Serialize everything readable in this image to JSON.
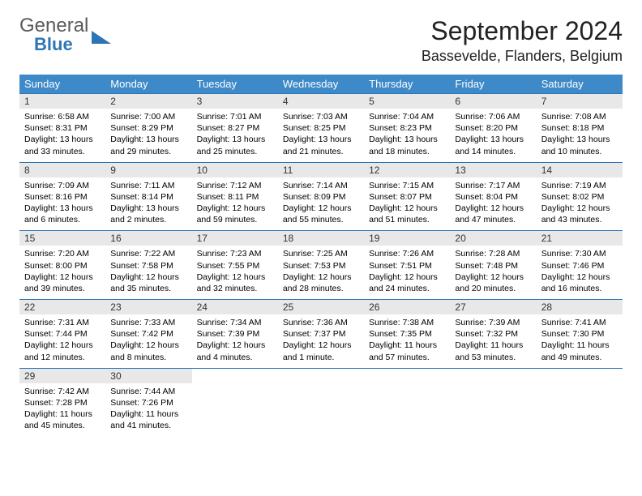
{
  "brand": {
    "word1": "General",
    "word2": "Blue"
  },
  "header": {
    "month_title": "September 2024",
    "location": "Bassevelde, Flanders, Belgium"
  },
  "style": {
    "header_bg": "#3e8ac8",
    "header_fg": "#ffffff",
    "row_divider": "#2e75b6",
    "daynum_bg": "#e8e8e8",
    "body_font_size": 10.5,
    "head_font_size": 13,
    "title_font_size": 32,
    "location_font_size": 18
  },
  "weekdays": [
    "Sunday",
    "Monday",
    "Tuesday",
    "Wednesday",
    "Thursday",
    "Friday",
    "Saturday"
  ],
  "days": [
    {
      "n": "1",
      "sunrise": "Sunrise: 6:58 AM",
      "sunset": "Sunset: 8:31 PM",
      "day1": "Daylight: 13 hours",
      "day2": "and 33 minutes."
    },
    {
      "n": "2",
      "sunrise": "Sunrise: 7:00 AM",
      "sunset": "Sunset: 8:29 PM",
      "day1": "Daylight: 13 hours",
      "day2": "and 29 minutes."
    },
    {
      "n": "3",
      "sunrise": "Sunrise: 7:01 AM",
      "sunset": "Sunset: 8:27 PM",
      "day1": "Daylight: 13 hours",
      "day2": "and 25 minutes."
    },
    {
      "n": "4",
      "sunrise": "Sunrise: 7:03 AM",
      "sunset": "Sunset: 8:25 PM",
      "day1": "Daylight: 13 hours",
      "day2": "and 21 minutes."
    },
    {
      "n": "5",
      "sunrise": "Sunrise: 7:04 AM",
      "sunset": "Sunset: 8:23 PM",
      "day1": "Daylight: 13 hours",
      "day2": "and 18 minutes."
    },
    {
      "n": "6",
      "sunrise": "Sunrise: 7:06 AM",
      "sunset": "Sunset: 8:20 PM",
      "day1": "Daylight: 13 hours",
      "day2": "and 14 minutes."
    },
    {
      "n": "7",
      "sunrise": "Sunrise: 7:08 AM",
      "sunset": "Sunset: 8:18 PM",
      "day1": "Daylight: 13 hours",
      "day2": "and 10 minutes."
    },
    {
      "n": "8",
      "sunrise": "Sunrise: 7:09 AM",
      "sunset": "Sunset: 8:16 PM",
      "day1": "Daylight: 13 hours",
      "day2": "and 6 minutes."
    },
    {
      "n": "9",
      "sunrise": "Sunrise: 7:11 AM",
      "sunset": "Sunset: 8:14 PM",
      "day1": "Daylight: 13 hours",
      "day2": "and 2 minutes."
    },
    {
      "n": "10",
      "sunrise": "Sunrise: 7:12 AM",
      "sunset": "Sunset: 8:11 PM",
      "day1": "Daylight: 12 hours",
      "day2": "and 59 minutes."
    },
    {
      "n": "11",
      "sunrise": "Sunrise: 7:14 AM",
      "sunset": "Sunset: 8:09 PM",
      "day1": "Daylight: 12 hours",
      "day2": "and 55 minutes."
    },
    {
      "n": "12",
      "sunrise": "Sunrise: 7:15 AM",
      "sunset": "Sunset: 8:07 PM",
      "day1": "Daylight: 12 hours",
      "day2": "and 51 minutes."
    },
    {
      "n": "13",
      "sunrise": "Sunrise: 7:17 AM",
      "sunset": "Sunset: 8:04 PM",
      "day1": "Daylight: 12 hours",
      "day2": "and 47 minutes."
    },
    {
      "n": "14",
      "sunrise": "Sunrise: 7:19 AM",
      "sunset": "Sunset: 8:02 PM",
      "day1": "Daylight: 12 hours",
      "day2": "and 43 minutes."
    },
    {
      "n": "15",
      "sunrise": "Sunrise: 7:20 AM",
      "sunset": "Sunset: 8:00 PM",
      "day1": "Daylight: 12 hours",
      "day2": "and 39 minutes."
    },
    {
      "n": "16",
      "sunrise": "Sunrise: 7:22 AM",
      "sunset": "Sunset: 7:58 PM",
      "day1": "Daylight: 12 hours",
      "day2": "and 35 minutes."
    },
    {
      "n": "17",
      "sunrise": "Sunrise: 7:23 AM",
      "sunset": "Sunset: 7:55 PM",
      "day1": "Daylight: 12 hours",
      "day2": "and 32 minutes."
    },
    {
      "n": "18",
      "sunrise": "Sunrise: 7:25 AM",
      "sunset": "Sunset: 7:53 PM",
      "day1": "Daylight: 12 hours",
      "day2": "and 28 minutes."
    },
    {
      "n": "19",
      "sunrise": "Sunrise: 7:26 AM",
      "sunset": "Sunset: 7:51 PM",
      "day1": "Daylight: 12 hours",
      "day2": "and 24 minutes."
    },
    {
      "n": "20",
      "sunrise": "Sunrise: 7:28 AM",
      "sunset": "Sunset: 7:48 PM",
      "day1": "Daylight: 12 hours",
      "day2": "and 20 minutes."
    },
    {
      "n": "21",
      "sunrise": "Sunrise: 7:30 AM",
      "sunset": "Sunset: 7:46 PM",
      "day1": "Daylight: 12 hours",
      "day2": "and 16 minutes."
    },
    {
      "n": "22",
      "sunrise": "Sunrise: 7:31 AM",
      "sunset": "Sunset: 7:44 PM",
      "day1": "Daylight: 12 hours",
      "day2": "and 12 minutes."
    },
    {
      "n": "23",
      "sunrise": "Sunrise: 7:33 AM",
      "sunset": "Sunset: 7:42 PM",
      "day1": "Daylight: 12 hours",
      "day2": "and 8 minutes."
    },
    {
      "n": "24",
      "sunrise": "Sunrise: 7:34 AM",
      "sunset": "Sunset: 7:39 PM",
      "day1": "Daylight: 12 hours",
      "day2": "and 4 minutes."
    },
    {
      "n": "25",
      "sunrise": "Sunrise: 7:36 AM",
      "sunset": "Sunset: 7:37 PM",
      "day1": "Daylight: 12 hours",
      "day2": "and 1 minute."
    },
    {
      "n": "26",
      "sunrise": "Sunrise: 7:38 AM",
      "sunset": "Sunset: 7:35 PM",
      "day1": "Daylight: 11 hours",
      "day2": "and 57 minutes."
    },
    {
      "n": "27",
      "sunrise": "Sunrise: 7:39 AM",
      "sunset": "Sunset: 7:32 PM",
      "day1": "Daylight: 11 hours",
      "day2": "and 53 minutes."
    },
    {
      "n": "28",
      "sunrise": "Sunrise: 7:41 AM",
      "sunset": "Sunset: 7:30 PM",
      "day1": "Daylight: 11 hours",
      "day2": "and 49 minutes."
    },
    {
      "n": "29",
      "sunrise": "Sunrise: 7:42 AM",
      "sunset": "Sunset: 7:28 PM",
      "day1": "Daylight: 11 hours",
      "day2": "and 45 minutes."
    },
    {
      "n": "30",
      "sunrise": "Sunrise: 7:44 AM",
      "sunset": "Sunset: 7:26 PM",
      "day1": "Daylight: 11 hours",
      "day2": "and 41 minutes."
    }
  ]
}
